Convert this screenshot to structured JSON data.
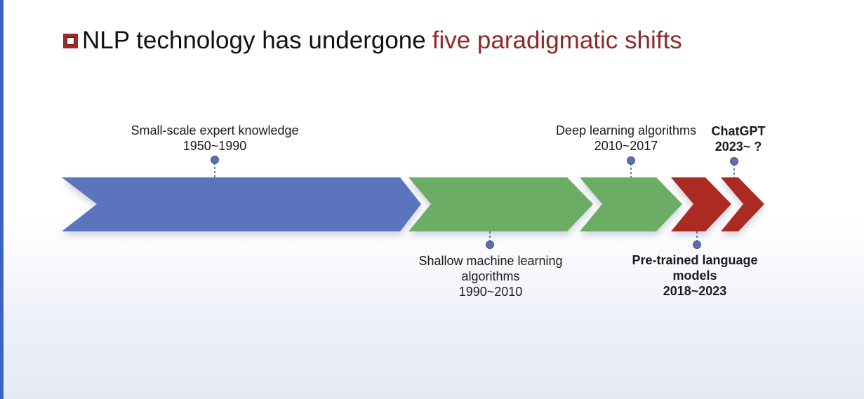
{
  "slide": {
    "title_prefix": "NLP technology has undergone",
    "title_highlight": "five paradigmatic shifts"
  },
  "colors": {
    "blue": "#5a74be",
    "green": "#6cad66",
    "red": "#ab2b22",
    "title_accent": "#8e2a26",
    "marker": "#5b6fae"
  },
  "paradigms": [
    {
      "name": "Small-scale expert knowledge",
      "period": "1950~1990"
    },
    {
      "name_line1": "Shallow machine learning",
      "name_line2": "algorithms",
      "period": "1990~2010"
    },
    {
      "name": "Deep learning algorithms",
      "period": "2010~2017"
    },
    {
      "name_line1": "Pre-trained language",
      "name_line2": "models",
      "period": "2018~2023"
    },
    {
      "name": "ChatGPT",
      "period": "2023~ ?"
    }
  ]
}
